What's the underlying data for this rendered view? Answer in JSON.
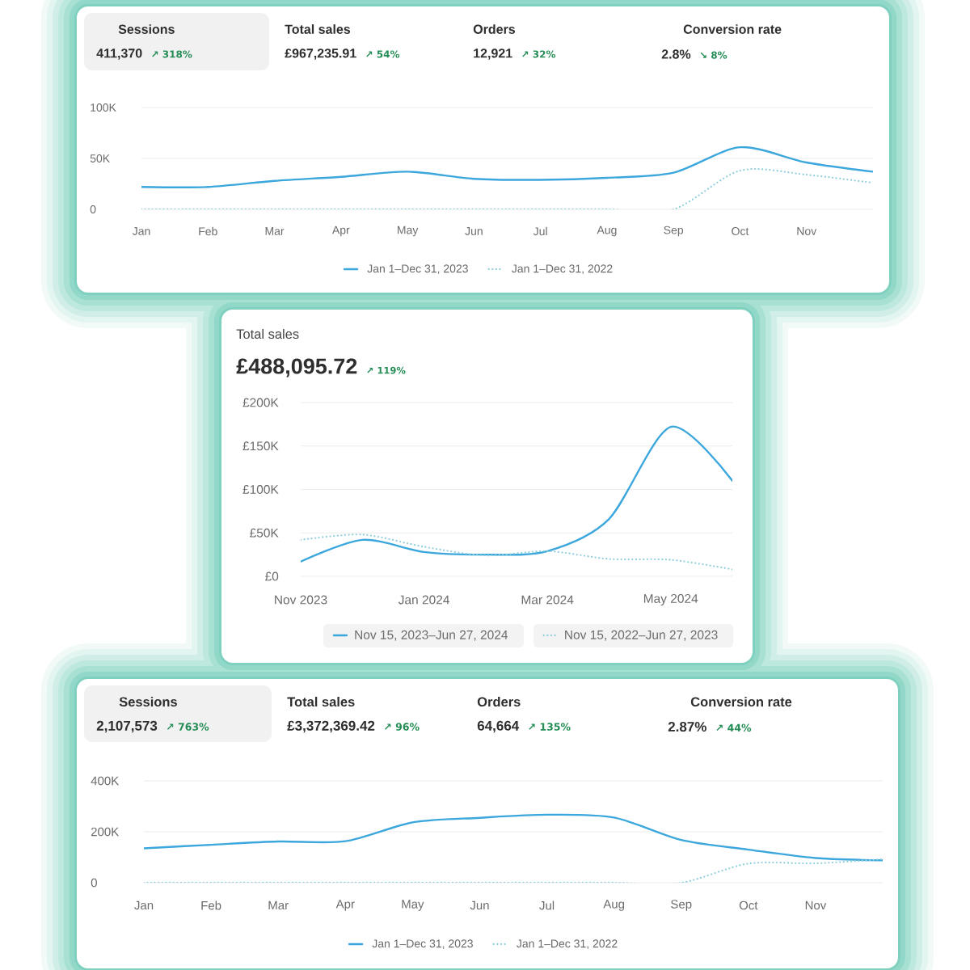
{
  "chart_data": [
    {
      "type": "line",
      "annotations": [
        "Sessions",
        "411,370",
        "↗ 318%",
        "Total sales",
        "£967,235.91",
        "↗ 54%",
        "Orders",
        "12,921",
        "↗ 32%",
        "Conversion rate",
        "2.8%",
        "↘ 8%"
      ],
      "categories": [
        "Jan",
        "Feb",
        "Mar",
        "Apr",
        "May",
        "Jun",
        "Jul",
        "Aug",
        "Sep",
        "Oct",
        "Nov",
        null
      ],
      "series": [
        {
          "name": "Jan 1–Dec 31, 2023",
          "color": "#3ba7dc",
          "line_style": "solid",
          "values": [
            22000,
            22000,
            28000,
            32000,
            37000,
            30000,
            29000,
            31000,
            36000,
            61000,
            46000,
            37000
          ]
        },
        {
          "name": "Jan 1–Dec 31, 2022",
          "color": "#8fcfdc",
          "line_style": "dotted",
          "values": [
            0,
            0,
            0,
            0,
            0,
            0,
            0,
            0,
            0,
            38000,
            34000,
            26000
          ]
        }
      ],
      "ylim": [
        0,
        100000
      ],
      "yticks": [
        0,
        {
          "value": 50000,
          "label": "50K"
        },
        {
          "value": 100000,
          "label": "100K"
        }
      ],
      "grid": "y",
      "legend": "bottom"
    },
    {
      "type": "line",
      "title": "Total sales",
      "subtitle": "£488,095.72",
      "annotations": [
        "↗ 119%"
      ],
      "categories": [
        "Nov 2023",
        null,
        "Jan 2024",
        null,
        "Mar 2024",
        null,
        "May 2024",
        null
      ],
      "series": [
        {
          "name": "Nov 15, 2023–Jun 27, 2024",
          "color": "#3ba7dc",
          "line_style": "solid",
          "values": [
            17000,
            42000,
            28000,
            25000,
            29000,
            66000,
            172000,
            110000
          ]
        },
        {
          "name": "Nov 15, 2022–Jun 27, 2023",
          "color": "#8fcfdc",
          "line_style": "dotted",
          "values": [
            42000,
            48000,
            34000,
            24000,
            29000,
            20000,
            19000,
            8000
          ]
        }
      ],
      "ylim": [
        0,
        200000
      ],
      "yticks": [
        {
          "value": 0,
          "label": "£0"
        },
        {
          "value": 50000,
          "label": "£50K"
        },
        {
          "value": 100000,
          "label": "£100K"
        },
        {
          "value": 150000,
          "label": "£150K"
        },
        {
          "value": 200000,
          "label": "£200K"
        }
      ],
      "grid": "y",
      "legend": "bottom"
    },
    {
      "type": "line",
      "annotations": [
        "Sessions",
        "2,107,573",
        "↗ 763%",
        "Total sales",
        "£3,372,369.42",
        "↗ 96%",
        "Orders",
        "64,664",
        "↗ 135%",
        "Conversion rate",
        "2.87%",
        "↗ 44%"
      ],
      "categories": [
        "Jan",
        "Feb",
        "Mar",
        "Apr",
        "May",
        "Jun",
        "Jul",
        "Aug",
        "Sep",
        "Oct",
        "Nov",
        null
      ],
      "series": [
        {
          "name": "Jan 1–Dec 31, 2023",
          "color": "#3ba7dc",
          "line_style": "solid",
          "values": [
            135000,
            149000,
            162000,
            163000,
            237000,
            255000,
            267000,
            256000,
            168000,
            130000,
            97000,
            88000
          ]
        },
        {
          "name": "Jan 1–Dec 31, 2022",
          "color": "#8fcfdc",
          "line_style": "dotted",
          "values": [
            0,
            0,
            0,
            0,
            0,
            0,
            0,
            0,
            0,
            75000,
            76000,
            92000
          ]
        }
      ],
      "ylim": [
        0,
        400000
      ],
      "yticks": [
        0,
        {
          "value": 200000,
          "label": "200K"
        },
        {
          "value": 400000,
          "label": "400K"
        }
      ],
      "grid": "y",
      "legend": "bottom"
    }
  ]
}
